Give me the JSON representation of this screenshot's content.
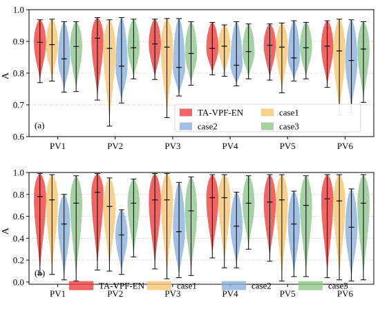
{
  "series_colors": [
    "#ee3a3a",
    "#f6c46e",
    "#86aedd",
    "#8cc48a"
  ],
  "chart_data": [
    {
      "type": "violin",
      "panel_label": "(a)",
      "ylabel": "A",
      "ylim": [
        0.6,
        1.0
      ],
      "yticks": [
        0.6,
        0.7,
        0.8,
        0.9,
        1.0
      ],
      "ytick_labels": [
        "0.6",
        "0.7",
        "0.8",
        "0.9",
        "1.0"
      ],
      "grid": true,
      "legend": {
        "placement": "lower-center",
        "columns": 2
      },
      "categories": [
        "PV1",
        "PV2",
        "PV3",
        "PV4",
        "PV5",
        "PV6"
      ],
      "series": [
        {
          "name": "TA-VPF-EN",
          "min": [
            0.77,
            0.715,
            0.78,
            0.795,
            0.778,
            0.755
          ],
          "median": [
            0.897,
            0.91,
            0.892,
            0.878,
            0.888,
            0.885
          ],
          "max": [
            0.968,
            0.975,
            0.97,
            0.96,
            0.955,
            0.965
          ]
        },
        {
          "name": "case1",
          "min": [
            0.775,
            0.633,
            0.66,
            0.79,
            0.738,
            0.668
          ],
          "median": [
            0.89,
            0.878,
            0.882,
            0.885,
            0.882,
            0.87
          ],
          "max": [
            0.97,
            0.968,
            0.972,
            0.952,
            0.958,
            0.97
          ]
        },
        {
          "name": "case2",
          "min": [
            0.74,
            0.706,
            0.728,
            0.76,
            0.775,
            0.677
          ],
          "median": [
            0.845,
            0.822,
            0.818,
            0.825,
            0.848,
            0.84
          ],
          "max": [
            0.962,
            0.975,
            0.972,
            0.962,
            0.965,
            0.968
          ]
        },
        {
          "name": "case3",
          "min": [
            0.742,
            0.782,
            0.762,
            0.782,
            0.782,
            0.708
          ],
          "median": [
            0.884,
            0.88,
            0.862,
            0.868,
            0.88,
            0.876
          ],
          "max": [
            0.962,
            0.97,
            0.962,
            0.955,
            0.96,
            0.962
          ]
        }
      ]
    },
    {
      "type": "violin",
      "panel_label": "(b)",
      "ylabel": "A",
      "ylim": [
        -0.02,
        1.0
      ],
      "yticks": [
        0.0,
        0.2,
        0.4,
        0.6,
        0.8,
        1.0
      ],
      "ytick_labels": [
        "0.0",
        "0.2",
        "0.4",
        "0.6",
        "0.8",
        "1.0"
      ],
      "grid": true,
      "legend": {
        "placement": "bottom",
        "columns": 4
      },
      "categories": [
        "PV1",
        "PV2",
        "PV3",
        "PV4",
        "PV5",
        "PV6"
      ],
      "series": [
        {
          "name": "TA-VPF-EN",
          "min": [
            0.07,
            0.11,
            0.12,
            0.22,
            0.19,
            0.04
          ],
          "median": [
            0.78,
            0.82,
            0.75,
            0.77,
            0.73,
            0.76
          ],
          "max": [
            0.99,
            0.99,
            0.99,
            0.98,
            0.98,
            0.98
          ]
        },
        {
          "name": "case1",
          "min": [
            0.07,
            0.1,
            0.03,
            0.13,
            0.01,
            0.02
          ],
          "median": [
            0.75,
            0.69,
            0.75,
            0.77,
            0.75,
            0.74
          ],
          "max": [
            0.98,
            0.95,
            0.99,
            0.98,
            0.98,
            0.98
          ]
        },
        {
          "name": "case2",
          "min": [
            0.02,
            0.07,
            0.04,
            0.13,
            0.05,
            0.01
          ],
          "median": [
            0.53,
            0.43,
            0.46,
            0.51,
            0.53,
            0.5
          ],
          "max": [
            0.8,
            0.66,
            0.91,
            0.82,
            0.83,
            0.85
          ]
        },
        {
          "name": "case3",
          "min": [
            0.01,
            0.23,
            0.06,
            0.3,
            0.05,
            0.02
          ],
          "median": [
            0.72,
            0.72,
            0.65,
            0.72,
            0.7,
            0.72
          ],
          "max": [
            0.97,
            0.94,
            0.96,
            0.97,
            0.97,
            0.98
          ]
        }
      ]
    }
  ]
}
